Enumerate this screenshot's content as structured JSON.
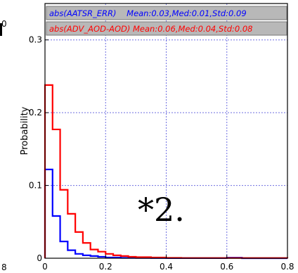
{
  "chart_data": {
    "type": "line",
    "title": "",
    "xlabel": "",
    "ylabel": "Probability",
    "xlim": [
      0,
      0.8
    ],
    "ylim": [
      0,
      0.35
    ],
    "xticks": [
      "0",
      "0.2",
      "0.4",
      "0.6",
      "0.8"
    ],
    "yticks": [
      "0",
      "0.1",
      "0.2",
      "0.3"
    ],
    "left_edge_labels": [
      "0",
      "8"
    ],
    "grid": true,
    "legend_position": "top",
    "annotation": "*2.",
    "series": [
      {
        "name": "abs(AATSR_ERR)",
        "legend_text": "abs(AATSR_ERR)    Mean:0.03,Med:0.01,Std:0.09",
        "color": "#0000ff",
        "bin_edges": [
          0,
          0.025,
          0.05,
          0.075,
          0.1,
          0.125,
          0.15,
          0.175,
          0.2,
          0.25,
          0.3,
          0.35,
          0.4,
          0.6,
          0.65,
          0.8
        ],
        "values": [
          0.122,
          0.058,
          0.023,
          0.011,
          0.006,
          0.004,
          0.003,
          0.002,
          0.001,
          0.0005,
          0.0003,
          0.0002,
          0.0001,
          0.0008,
          0
        ]
      },
      {
        "name": "abs(ADV_AOD-AOD)",
        "legend_text": "abs(ADV_AOD-AOD) Mean:0.06,Med:0.04,Std:0.08",
        "color": "#ff0000",
        "bin_edges": [
          0,
          0.025,
          0.05,
          0.075,
          0.1,
          0.125,
          0.15,
          0.175,
          0.2,
          0.225,
          0.25,
          0.275,
          0.3,
          0.35,
          0.4,
          0.45,
          0.8
        ],
        "values": [
          0.238,
          0.177,
          0.094,
          0.061,
          0.036,
          0.021,
          0.012,
          0.009,
          0.006,
          0.004,
          0.003,
          0.002,
          0.0015,
          0.001,
          0.0005,
          0.0003
        ]
      }
    ]
  },
  "colors": {
    "grid": "#6f6fe0",
    "legend_bg": "#b8b8b8",
    "axes": "#000000"
  }
}
